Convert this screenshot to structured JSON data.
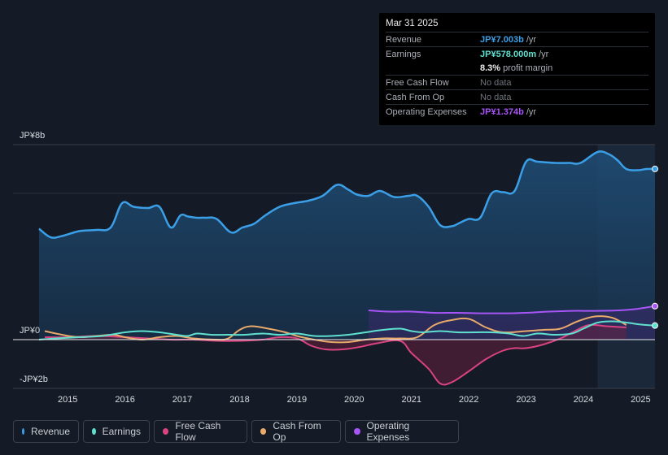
{
  "tooltip": {
    "date": "Mar 31 2025",
    "rows": {
      "revenue": {
        "label": "Revenue",
        "value": "JP¥7.003b",
        "unit": "/yr",
        "color": "#3b9fe8"
      },
      "earnings": {
        "label": "Earnings",
        "value": "JP¥578.000m",
        "unit": "/yr",
        "color": "#5fe0cf"
      },
      "margin": {
        "value": "8.3%",
        "unit": "profit margin"
      },
      "fcf": {
        "label": "Free Cash Flow",
        "value": "No data"
      },
      "cfo": {
        "label": "Cash From Op",
        "value": "No data"
      },
      "opex": {
        "label": "Operating Expenses",
        "value": "JP¥1.374b",
        "unit": "/yr",
        "color": "#a855f7"
      }
    }
  },
  "legend": {
    "revenue": {
      "label": "Revenue",
      "color": "#3b9fe8"
    },
    "earnings": {
      "label": "Earnings",
      "color": "#5fe0cf"
    },
    "fcf": {
      "label": "Free Cash Flow",
      "color": "#d9437f"
    },
    "cfo": {
      "label": "Cash From Op",
      "color": "#e8a96a"
    },
    "opex": {
      "label": "Operating Expenses",
      "color": "#a855f7"
    }
  },
  "chart_data": {
    "type": "area",
    "title": "",
    "y_unit": "JP¥b",
    "ylim": [
      -2,
      8
    ],
    "y_tick_labels": [
      {
        "value": 8,
        "label": "JP¥8b"
      },
      {
        "value": 0,
        "label": "JP¥0"
      },
      {
        "value": -2,
        "label": "-JP¥2b"
      }
    ],
    "x_tick_labels": [
      "2015",
      "2016",
      "2017",
      "2018",
      "2019",
      "2020",
      "2021",
      "2022",
      "2023",
      "2024",
      "2025"
    ],
    "xlim": [
      2014.45,
      2025.25
    ],
    "highlight_from": 2024.25,
    "series": [
      {
        "key": "revenue",
        "name": "Revenue",
        "color": "#3b9fe8",
        "fill": true,
        "x": [
          2014.5,
          2014.7,
          2014.9,
          2015.2,
          2015.5,
          2015.75,
          2015.95,
          2016.15,
          2016.4,
          2016.6,
          2016.8,
          2016.97,
          2017.1,
          2017.25,
          2017.4,
          2017.6,
          2017.85,
          2018.05,
          2018.25,
          2018.45,
          2018.7,
          2018.95,
          2019.2,
          2019.45,
          2019.7,
          2019.9,
          2020.05,
          2020.25,
          2020.45,
          2020.7,
          2020.95,
          2021.1,
          2021.3,
          2021.5,
          2021.7,
          2021.85,
          2022.0,
          2022.2,
          2022.4,
          2022.6,
          2022.8,
          2023.0,
          2023.2,
          2023.5,
          2023.75,
          2023.95,
          2024.25,
          2024.45,
          2024.6,
          2024.75,
          2024.95,
          2025.1,
          2025.25
        ],
        "values": [
          4.55,
          4.2,
          4.25,
          4.45,
          4.5,
          4.6,
          5.6,
          5.45,
          5.4,
          5.45,
          4.6,
          5.1,
          5.05,
          5.0,
          5.0,
          4.95,
          4.4,
          4.6,
          4.75,
          5.1,
          5.45,
          5.6,
          5.7,
          5.9,
          6.35,
          6.15,
          5.95,
          5.9,
          6.1,
          5.85,
          5.9,
          5.9,
          5.45,
          4.7,
          4.65,
          4.8,
          4.95,
          5.0,
          6.0,
          6.05,
          6.1,
          7.3,
          7.3,
          7.25,
          7.25,
          7.25,
          7.7,
          7.6,
          7.35,
          7.0,
          6.95,
          7.0,
          7.003
        ]
      },
      {
        "key": "earnings",
        "name": "Earnings",
        "color": "#5fe0cf",
        "fill": false,
        "x": [
          2014.5,
          2014.8,
          2015.2,
          2015.6,
          2016.0,
          2016.3,
          2016.6,
          2016.9,
          2017.1,
          2017.25,
          2017.5,
          2017.8,
          2018.1,
          2018.4,
          2018.7,
          2019.0,
          2019.3,
          2019.6,
          2019.9,
          2020.2,
          2020.5,
          2020.8,
          2021.0,
          2021.2,
          2021.5,
          2021.8,
          2022.1,
          2022.4,
          2022.7,
          2022.95,
          2023.2,
          2023.5,
          2023.8,
          2024.0,
          2024.25,
          2024.5,
          2024.75,
          2025.0,
          2025.25
        ],
        "values": [
          0.0,
          0.05,
          0.1,
          0.15,
          0.3,
          0.35,
          0.3,
          0.2,
          0.15,
          0.25,
          0.2,
          0.2,
          0.2,
          0.25,
          0.2,
          0.25,
          0.15,
          0.15,
          0.2,
          0.3,
          0.4,
          0.45,
          0.35,
          0.3,
          0.35,
          0.3,
          0.3,
          0.3,
          0.25,
          0.15,
          0.25,
          0.2,
          0.25,
          0.45,
          0.7,
          0.75,
          0.7,
          0.62,
          0.578
        ]
      },
      {
        "key": "fcf",
        "name": "Free Cash Flow",
        "color": "#d9437f",
        "fill": true,
        "x": [
          2014.6,
          2015.0,
          2015.5,
          2016.0,
          2016.4,
          2016.8,
          2017.2,
          2017.6,
          2018.0,
          2018.4,
          2018.7,
          2019.0,
          2019.25,
          2019.5,
          2019.8,
          2020.1,
          2020.4,
          2020.8,
          2021.0,
          2021.3,
          2021.5,
          2021.7,
          2022.0,
          2022.3,
          2022.6,
          2022.8,
          2023.0,
          2023.3,
          2023.6,
          2023.85,
          2024.1,
          2024.4,
          2024.75
        ],
        "values": [
          0.1,
          0.1,
          0.15,
          0.1,
          0.05,
          0.0,
          0.0,
          -0.05,
          -0.05,
          0.0,
          0.1,
          0.05,
          -0.25,
          -0.4,
          -0.4,
          -0.3,
          -0.15,
          -0.05,
          -0.55,
          -1.2,
          -1.8,
          -1.75,
          -1.3,
          -0.8,
          -0.45,
          -0.35,
          -0.35,
          -0.2,
          0.05,
          0.35,
          0.6,
          0.55,
          0.5
        ]
      },
      {
        "key": "cfo",
        "name": "Cash From Op",
        "color": "#e8a96a",
        "fill": false,
        "x": [
          2014.6,
          2014.9,
          2015.2,
          2015.5,
          2015.8,
          2016.0,
          2016.3,
          2016.6,
          2016.9,
          2017.2,
          2017.6,
          2017.8,
          2018.0,
          2018.2,
          2018.5,
          2018.8,
          2019.0,
          2019.3,
          2019.6,
          2019.9,
          2020.2,
          2020.5,
          2020.8,
          2021.1,
          2021.4,
          2021.7,
          2022.0,
          2022.3,
          2022.6,
          2023.0,
          2023.3,
          2023.6,
          2023.9,
          2024.2,
          2024.5,
          2024.75
        ],
        "values": [
          0.35,
          0.2,
          0.1,
          0.15,
          0.2,
          0.1,
          0.0,
          0.1,
          0.15,
          0.05,
          0.0,
          0.05,
          0.4,
          0.55,
          0.45,
          0.3,
          0.15,
          0.0,
          -0.1,
          -0.1,
          0.0,
          0.05,
          0.05,
          0.1,
          0.6,
          0.8,
          0.85,
          0.5,
          0.3,
          0.35,
          0.4,
          0.45,
          0.75,
          0.95,
          0.9,
          0.6
        ]
      },
      {
        "key": "opex",
        "name": "Operating Expenses",
        "color": "#a855f7",
        "fill": true,
        "fill_to": "cfo",
        "x": [
          2020.25,
          2020.6,
          2021.0,
          2021.4,
          2021.8,
          2022.2,
          2022.6,
          2023.0,
          2023.4,
          2023.8,
          2024.2,
          2024.6,
          2024.9,
          2025.25
        ],
        "values": [
          1.2,
          1.15,
          1.15,
          1.1,
          1.1,
          1.08,
          1.08,
          1.1,
          1.15,
          1.18,
          1.18,
          1.2,
          1.25,
          1.374
        ]
      }
    ]
  }
}
